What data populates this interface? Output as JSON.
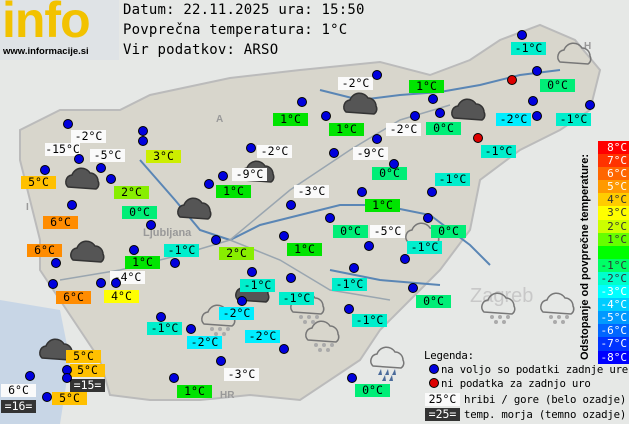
{
  "logo": {
    "text": "info",
    "url": "www.informacije.si"
  },
  "header": {
    "date_line": "Datum: 22.11.2025 ura: 15:50",
    "avg_line": "Povprečna temperatura: 1°C",
    "source_line": "Vir podatkov: ARSO"
  },
  "map_labels": {
    "austria": "A",
    "hungary": "H",
    "italy": "I",
    "croatia": "HR",
    "ljubljana": "Ljubljana",
    "zagreb": "Zagreb"
  },
  "colors": {
    "white": "#fafafa",
    "dark": "#333333",
    "t6": "#ff8c00",
    "t5": "#ffc000",
    "t4": "#ffff00",
    "t3": "#ccee00",
    "t2": "#88ee00",
    "t1": "#00e400",
    "t0": "#00ee77",
    "tm1": "#00eecc",
    "tm2": "#00eeff",
    "station_ok": "#0000dd",
    "station_missing": "#dd0000"
  },
  "stations": [
    {
      "temp": "-1°C",
      "kind": "tm1"
    },
    {
      "temp": "0°C",
      "kind": "t0"
    },
    {
      "temp": "-2°C",
      "kind": "white"
    },
    {
      "temp": "1°C",
      "kind": "t1"
    },
    {
      "temp": "0°C",
      "kind": "t0"
    },
    {
      "temp": "-2°C",
      "kind": "tm2"
    },
    {
      "temp": "-1°C",
      "kind": "tm1"
    },
    {
      "temp": "1°C",
      "kind": "t1"
    },
    {
      "temp": "-2°C",
      "kind": "white"
    },
    {
      "temp": "-9°C",
      "kind": "white"
    },
    {
      "temp": "-1°C",
      "kind": "tm1"
    },
    {
      "temp": "0°C",
      "kind": "t0"
    },
    {
      "temp": "-1°C",
      "kind": "tm1"
    },
    {
      "temp": "-3°C",
      "kind": "white"
    },
    {
      "temp": "1°C",
      "kind": "t1"
    },
    {
      "temp": "0°C",
      "kind": "t0"
    },
    {
      "temp": "-5°C",
      "kind": "white"
    },
    {
      "temp": "0°C",
      "kind": "t0"
    },
    {
      "temp": "-1°C",
      "kind": "tm1"
    },
    {
      "temp": "-1°C",
      "kind": "tm1"
    },
    {
      "temp": "0°C",
      "kind": "t0"
    },
    {
      "temp": "-1°C",
      "kind": "tm1"
    },
    {
      "temp": "0°C",
      "kind": "t0"
    },
    {
      "temp": "1°C",
      "kind": "t1"
    },
    {
      "temp": "-2°C",
      "kind": "white"
    },
    {
      "temp": "-15°C",
      "kind": "white"
    },
    {
      "temp": "-5°C",
      "kind": "white"
    },
    {
      "temp": "3°C",
      "kind": "t3"
    },
    {
      "temp": "5°C",
      "kind": "t5"
    },
    {
      "temp": "2°C",
      "kind": "t2"
    },
    {
      "temp": "-2°C",
      "kind": "white"
    },
    {
      "temp": "-9°C",
      "kind": "white"
    },
    {
      "temp": "1°C",
      "kind": "t1"
    },
    {
      "temp": "0°C",
      "kind": "t0"
    },
    {
      "temp": "6°C",
      "kind": "t6"
    },
    {
      "temp": "6°C",
      "kind": "t6"
    },
    {
      "temp": "1°C",
      "kind": "t1"
    },
    {
      "temp": "-1°C",
      "kind": "tm1"
    },
    {
      "temp": "2°C",
      "kind": "t2"
    },
    {
      "temp": "1°C",
      "kind": "t1"
    },
    {
      "temp": "-4°C",
      "kind": "white"
    },
    {
      "temp": "6°C",
      "kind": "t6"
    },
    {
      "temp": "4°C",
      "kind": "t4"
    },
    {
      "temp": "-1°C",
      "kind": "tm1"
    },
    {
      "temp": "-1°C",
      "kind": "tm1"
    },
    {
      "temp": "-2°C",
      "kind": "tm2"
    },
    {
      "temp": "-1°C",
      "kind": "tm1"
    },
    {
      "temp": "-2°C",
      "kind": "tm2"
    },
    {
      "temp": "-2°C",
      "kind": "tm2"
    },
    {
      "temp": "5°C",
      "kind": "t5"
    },
    {
      "temp": "5°C",
      "kind": "t5"
    },
    {
      "temp": "=15=",
      "kind": "dark"
    },
    {
      "temp": "6°C",
      "kind": "white"
    },
    {
      "temp": "=16=",
      "kind": "dark"
    },
    {
      "temp": "5°C",
      "kind": "t5"
    },
    {
      "temp": "1°C",
      "kind": "t1"
    },
    {
      "temp": "-3°C",
      "kind": "white"
    }
  ],
  "station_dots": [
    "ok",
    "missing",
    "ok",
    "ok",
    "ok",
    "ok",
    "ok",
    "ok",
    "ok",
    "ok",
    "ok",
    "ok",
    "missing",
    "ok",
    "ok",
    "ok",
    "ok",
    "ok",
    "ok",
    "ok",
    "ok",
    "ok",
    "ok",
    "ok",
    "ok",
    "ok",
    "ok",
    "ok",
    "ok",
    "ok",
    "ok",
    "ok",
    "ok",
    "ok",
    "ok",
    "ok",
    "ok",
    "ok",
    "ok",
    "ok",
    "ok",
    "ok",
    "ok",
    "ok",
    "ok",
    "ok",
    "ok",
    "ok",
    "ok",
    "ok",
    "ok",
    "ok",
    "ok",
    "ok",
    "ok",
    "ok",
    "ok",
    "ok",
    "ok"
  ],
  "weather_icons": [
    "cloud-dark",
    "cloud-outline",
    "cloud-dark",
    "cloud-dark",
    "cloud-dark",
    "cloud-dark",
    "cloud-dark",
    "cloud-dark",
    "cloud-outline",
    "cloud-snow",
    "cloud-snow",
    "cloud-snow",
    "cloud-snow",
    "cloud-snow",
    "cloud-rain",
    "cloud-dark"
  ],
  "scale": {
    "title": "Odstopanje od povprečne temperature:",
    "steps": [
      {
        "label": "8°C",
        "color": "#ff0000"
      },
      {
        "label": "7°C",
        "color": "#ff3300"
      },
      {
        "label": "6°C",
        "color": "#ff6600"
      },
      {
        "label": "5°C",
        "color": "#ff9900"
      },
      {
        "label": "4°C",
        "color": "#ffcc00"
      },
      {
        "label": "3°C",
        "color": "#ffff00"
      },
      {
        "label": "2°C",
        "color": "#ccff00"
      },
      {
        "label": "1°C",
        "color": "#66ff00"
      },
      {
        "label": "",
        "color": "#00ff00"
      },
      {
        "label": "-1°C",
        "color": "#00ff66"
      },
      {
        "label": "-2°C",
        "color": "#00ffcc"
      },
      {
        "label": "-3°C",
        "color": "#00ffff"
      },
      {
        "label": "-4°C",
        "color": "#00ccff"
      },
      {
        "label": "-5°C",
        "color": "#0099ff"
      },
      {
        "label": "-6°C",
        "color": "#0066ff"
      },
      {
        "label": "-7°C",
        "color": "#0033ff"
      },
      {
        "label": "-8°C",
        "color": "#0000ff"
      }
    ]
  },
  "legend": {
    "title": "Legenda:",
    "ok": "na voljo so podatki zadnje ure",
    "missing": "ni podatka za zadnjo uro",
    "mountain_sample": "25°C",
    "mountain": "hribi / gore (belo ozadje)",
    "sea_sample": "=25=",
    "sea": "temp. morja (temno ozadje)"
  }
}
